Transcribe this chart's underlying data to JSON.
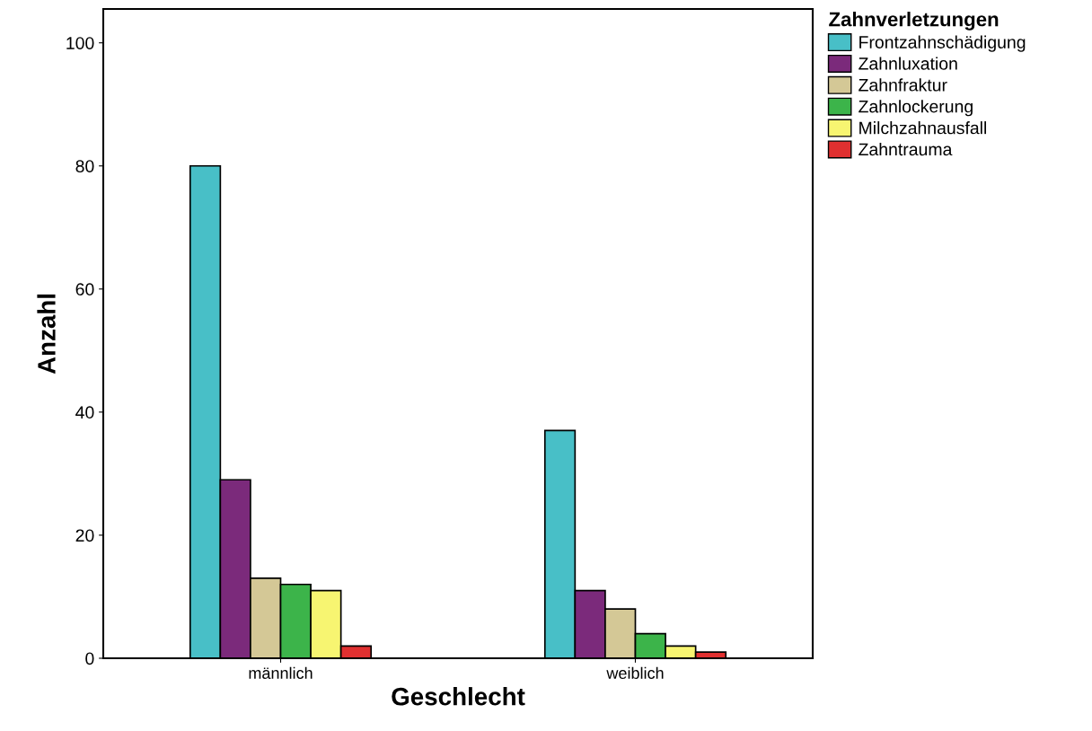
{
  "chart_data": {
    "type": "bar",
    "xlabel": "Geschlecht",
    "ylabel": "Anzahl",
    "legend_title": "Zahnverletzungen",
    "categories": [
      "männlich",
      "weiblich"
    ],
    "series": [
      {
        "name": "Frontzahnschädigung",
        "color": "#48bfc7",
        "values": [
          80,
          37
        ]
      },
      {
        "name": "Zahnluxation",
        "color": "#7b2a7b",
        "values": [
          29,
          11
        ]
      },
      {
        "name": "Zahnfraktur",
        "color": "#d4c896",
        "values": [
          13,
          8
        ]
      },
      {
        "name": "Zahnlockerung",
        "color": "#3cb44a",
        "values": [
          12,
          4
        ]
      },
      {
        "name": "Milchzahnausfall",
        "color": "#f7f571",
        "values": [
          11,
          2
        ]
      },
      {
        "name": "Zahntrauma",
        "color": "#e03030",
        "values": [
          2,
          1
        ]
      }
    ],
    "ylim": [
      0,
      105.5
    ],
    "yticks": [
      0,
      20,
      40,
      60,
      80,
      100
    ],
    "grid": false,
    "legend": "top right"
  }
}
